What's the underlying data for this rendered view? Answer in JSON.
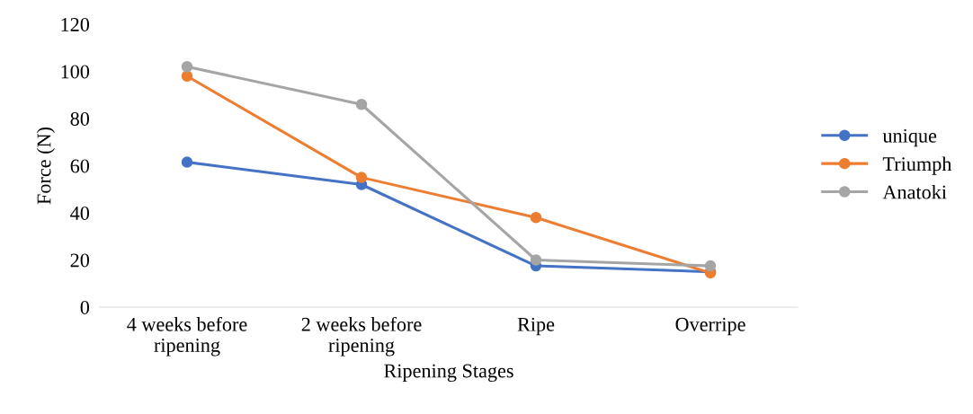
{
  "chart_data": {
    "type": "line",
    "xlabel": "Ripening Stages",
    "ylabel": "Force (N)",
    "categories": [
      "4 weeks before\nripening",
      "2 weeks before\nripening",
      "Ripe",
      "Overripe"
    ],
    "series": [
      {
        "name": "unique",
        "color": "#4472c4",
        "values": [
          61.5,
          52,
          17.5,
          15
        ]
      },
      {
        "name": "Triumph",
        "color": "#ed7d31",
        "values": [
          98,
          55,
          38,
          14.5
        ]
      },
      {
        "name": "Anatoki",
        "color": "#a5a5a5",
        "values": [
          102,
          86,
          20,
          17.5
        ]
      }
    ],
    "ylim": [
      0,
      120
    ],
    "yticks": [
      0,
      20,
      40,
      60,
      80,
      100,
      120
    ],
    "grid": false,
    "legend": "right",
    "marker": "circle",
    "line_style": "solid"
  }
}
